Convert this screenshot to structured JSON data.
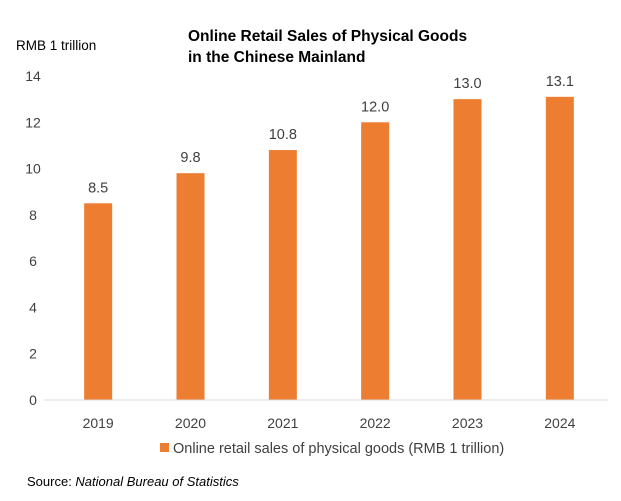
{
  "chart_data": {
    "type": "bar",
    "title_lines": [
      "Online Retail Sales of Physical Goods",
      "in the Chinese Mainland"
    ],
    "ylabel": "RMB 1 trillion",
    "xlabel": "",
    "categories": [
      "2019",
      "2020",
      "2021",
      "2022",
      "2023",
      "2024"
    ],
    "series": [
      {
        "name": "Online retail sales of physical goods (RMB 1 trillion)",
        "values": [
          8.5,
          9.8,
          10.8,
          12.0,
          13.0,
          13.1
        ],
        "labels": [
          "8.5",
          "9.8",
          "10.8",
          "12.0",
          "13.0",
          "13.1"
        ],
        "color": "#ED7D31"
      }
    ],
    "ylim": [
      0,
      14
    ],
    "yticks": [
      "0",
      "2",
      "4",
      "6",
      "8",
      "10",
      "12",
      "14"
    ],
    "grid": false,
    "legend_position": "bottom"
  },
  "source": {
    "prefix": "Source: ",
    "name": "National Bureau of Statistics"
  }
}
